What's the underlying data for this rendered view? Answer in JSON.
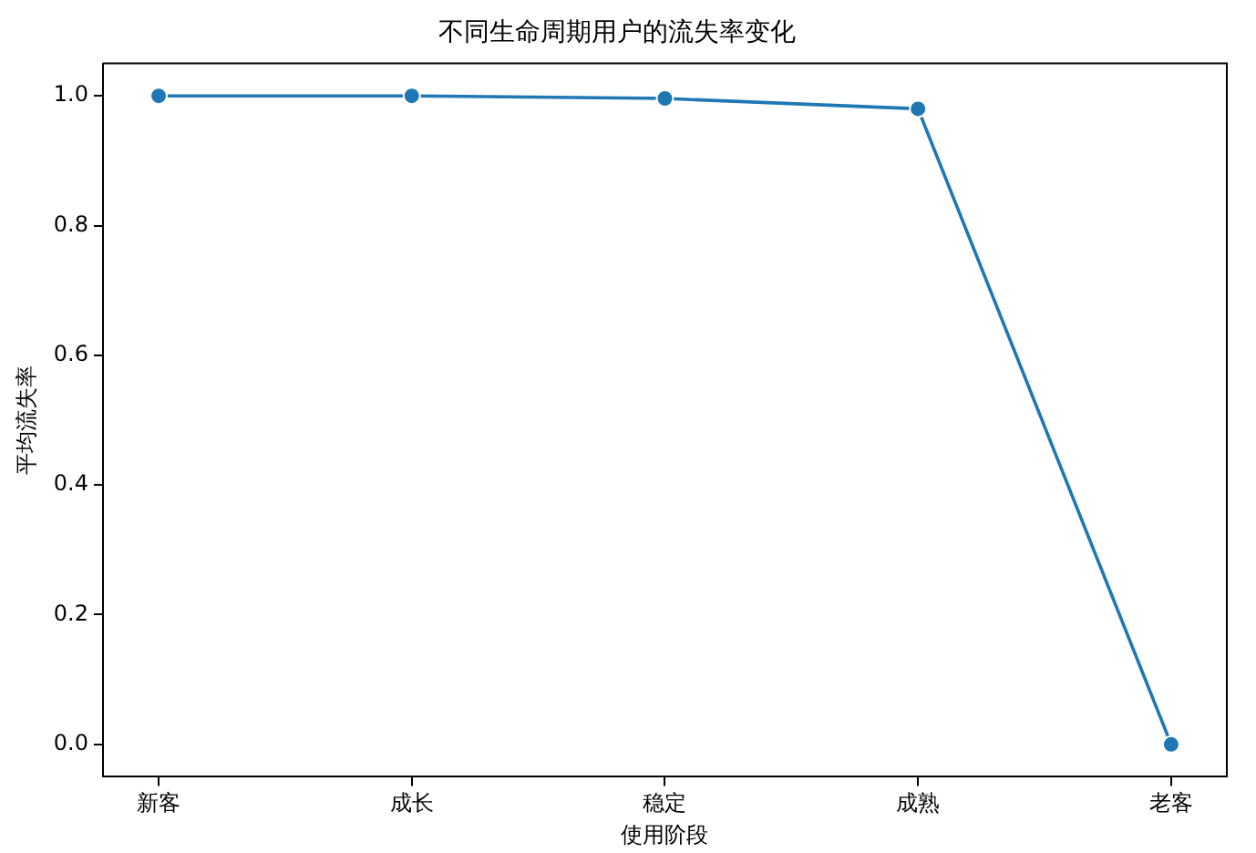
{
  "chart_data": {
    "type": "line",
    "title": "不同生命周期用户的流失率变化",
    "xlabel": "使用阶段",
    "ylabel": "平均流失率",
    "categories": [
      "新客",
      "成长",
      "稳定",
      "成熟",
      "老客"
    ],
    "series": [
      {
        "color": "#1f77b4",
        "values": [
          1.0,
          1.0,
          0.996,
          0.98,
          0.0
        ]
      }
    ],
    "ylim": [
      -0.05,
      1.05
    ],
    "yticks": [
      {
        "value": 0,
        "label": "0.0"
      },
      {
        "value": 0.2,
        "label": "0.2"
      },
      {
        "value": 0.4,
        "label": "0.4"
      },
      {
        "value": 0.6,
        "label": "0.6"
      },
      {
        "value": 0.8,
        "label": "0.8"
      },
      {
        "value": 1,
        "label": "1.0"
      }
    ],
    "grid": false,
    "legend": false,
    "marker": "circle",
    "line_style": "solid"
  }
}
